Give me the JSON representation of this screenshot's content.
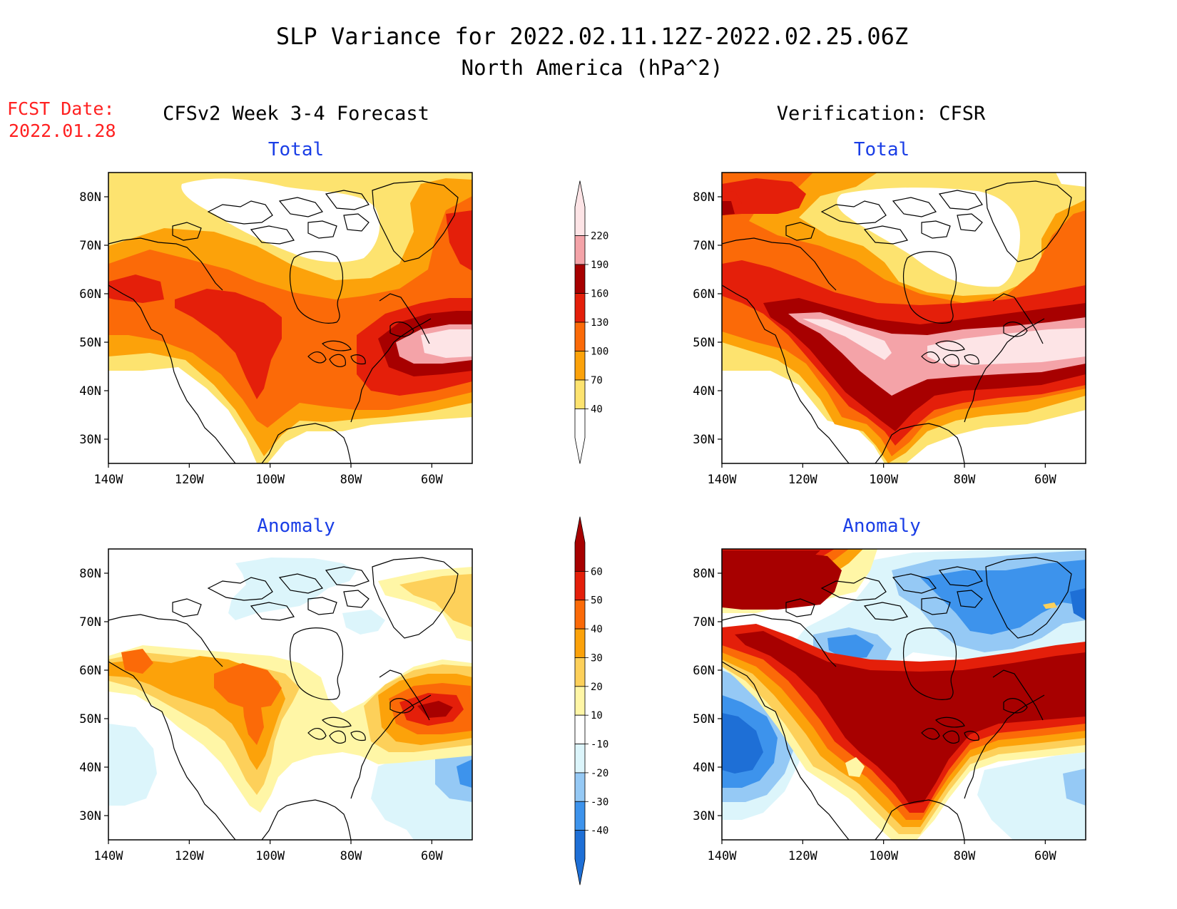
{
  "header": {
    "title": "SLP Variance for 2022.02.11.12Z-2022.02.25.06Z",
    "subtitle": "North America (hPa^2)",
    "fcst_label": "FCST Date:",
    "fcst_date": "2022.01.28"
  },
  "columns": {
    "left": "CFSv2 Week 3-4 Forecast",
    "right": "Verification: CFSR"
  },
  "panels": {
    "total": "Total",
    "anomaly": "Anomaly"
  },
  "axes": {
    "lat_labels": [
      "80N",
      "70N",
      "60N",
      "50N",
      "40N",
      "30N"
    ],
    "lon_labels": [
      "140W",
      "120W",
      "100W",
      "80W",
      "60W"
    ],
    "lat_range": [
      25,
      85
    ],
    "lon_range": [
      -140,
      -50
    ]
  },
  "colorbars": {
    "total": {
      "labels": [
        "220",
        "190",
        "160",
        "130",
        "100",
        "70",
        "40"
      ],
      "colors": [
        "#ffffff",
        "#fde36f",
        "#fca20a",
        "#fb6a08",
        "#e41f0a",
        "#a70000",
        "#f4a3a8",
        "#fde4e6"
      ]
    },
    "anomaly": {
      "labels": [
        "60",
        "50",
        "40",
        "30",
        "20",
        "10",
        "-10",
        "-20",
        "-30",
        "-40"
      ],
      "colors": [
        "#1e6fd6",
        "#3d93ec",
        "#95c9f5",
        "#dcf5fb",
        "#ffffff",
        "#fff6a6",
        "#fdd05a",
        "#fca20a",
        "#fb6a08",
        "#e41f0a",
        "#a70000"
      ]
    }
  },
  "map_colors": {
    "white": "#ffffff",
    "y": "#fde36f",
    "o1": "#fca20a",
    "o2": "#fb6a08",
    "r": "#e41f0a",
    "dr": "#a70000",
    "pk": "#f4a3a8",
    "lp": "#fde4e6",
    "ly": "#fff6a6",
    "ly2": "#fdd05a",
    "lb": "#dcf5fb",
    "b1": "#95c9f5",
    "b2": "#3d93ec",
    "b3": "#1e6fd6",
    "title_blue": "#1a3ee6",
    "fcst_red": "#ff2020",
    "coast": "#000000"
  }
}
